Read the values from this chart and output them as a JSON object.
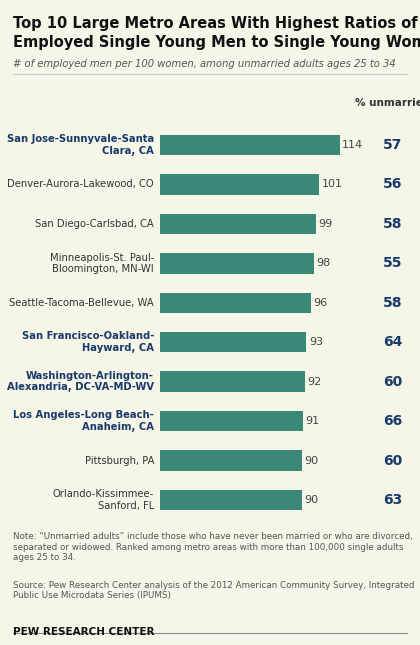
{
  "title_line1": "Top 10 Large Metro Areas With Highest Ratios of",
  "title_line2": "Employed Single Young Men to Single Young Women",
  "subtitle": "# of employed men per 100 women, among unmarried adults ages 25 to 34",
  "categories": [
    "San Jose-Sunnyvale-Santa\nClara, CA",
    "Denver-Aurora-Lakewood, CO",
    "San Diego-Carlsbad, CA",
    "Minneapolis-St. Paul-\nBloomington, MN-WI",
    "Seattle-Tacoma-Bellevue, WA",
    "San Francisco-Oakland-\nHayward, CA",
    "Washington-Arlington-\nAlexandria, DC-VA-MD-WV",
    "Los Angeles-Long Beach-\nAnaheim, CA",
    "Pittsburgh, PA",
    "Orlando-Kissimmee-\nSanford, FL"
  ],
  "values": [
    114,
    101,
    99,
    98,
    96,
    93,
    92,
    91,
    90,
    90
  ],
  "pct_unmarried": [
    57,
    56,
    58,
    55,
    58,
    64,
    60,
    66,
    60,
    63
  ],
  "bar_color": "#3a8876",
  "highlight_indices": [
    0,
    5,
    6,
    7
  ],
  "highlight_color": "#1a3a6b",
  "normal_color": "#333333",
  "note_text": "Note: “Unmarried adults” include those who have never been married or who are divorced,\nseparated or widowed. Ranked among metro areas with more than 100,000 single adults\nages 25 to 34.",
  "source_text": "Source: Pew Research Center analysis of the 2012 American Community Survey, Integrated\nPublic Use Microdata Series (IPUMS)",
  "branding": "PEW RESEARCH CENTER",
  "pct_header": "% unmarried",
  "background_color": "#f5f5e8",
  "bar_xlim": [
    0,
    125
  ],
  "figsize": [
    4.2,
    6.45
  ],
  "dpi": 100
}
